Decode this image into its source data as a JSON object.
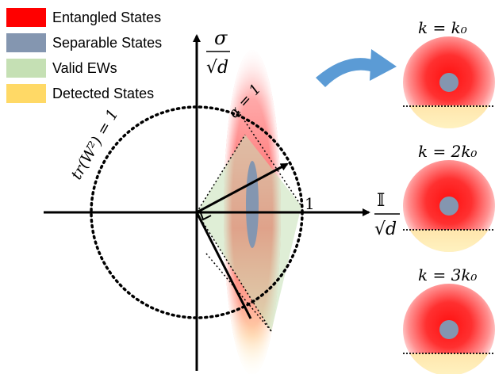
{
  "legend": {
    "items": [
      {
        "label": "Entangled States",
        "color": "#ff0000"
      },
      {
        "label": "Separable States",
        "color": "#8496b0"
      },
      {
        "label": "Valid EWs",
        "color": "#c5e0b4"
      },
      {
        "label": "Detected States",
        "color": "#ffd966"
      }
    ]
  },
  "axes": {
    "y_label_num": "σ",
    "y_label_den": "√d",
    "x_label_num": "𝕀",
    "x_label_den": "√d",
    "one_label": "1"
  },
  "annotations": {
    "circle_label": "tr(W²) = 1",
    "alpha_label": "α = 1"
  },
  "panels": [
    {
      "label": "k = k₀"
    },
    {
      "label": "k = 2k₀"
    },
    {
      "label": "k = 3k₀"
    }
  ],
  "colors": {
    "entangled": "#ff0000",
    "separable": "#8496b0",
    "valid_ew": "#c5e0b4",
    "detected": "#ffd966",
    "arrow": "#5b9bd5"
  }
}
